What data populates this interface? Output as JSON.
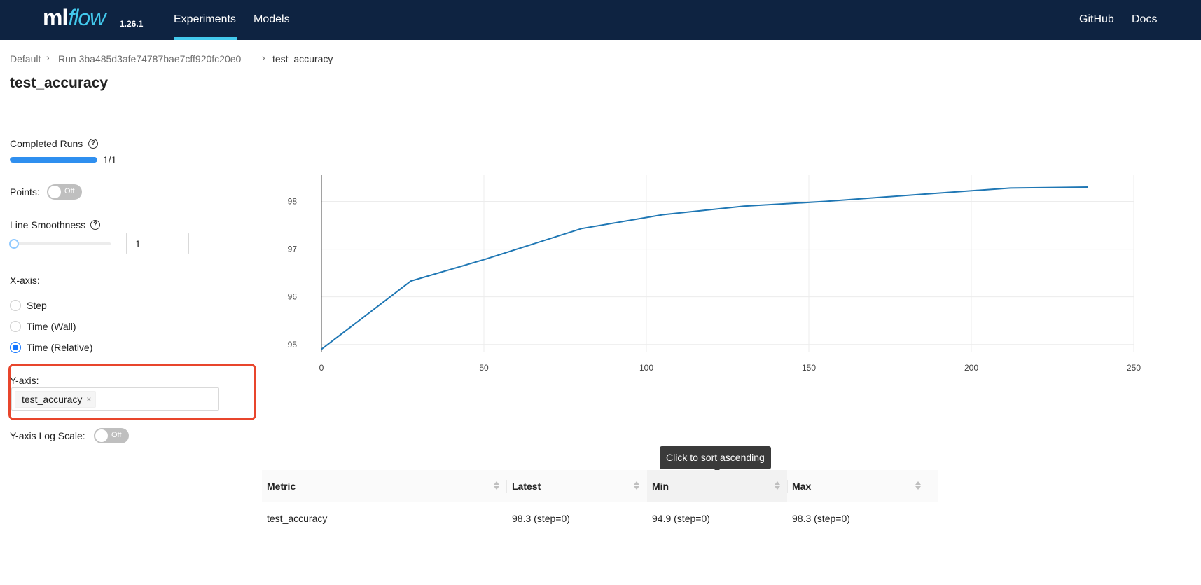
{
  "header": {
    "logo_ml": "ml",
    "logo_flow": "flow",
    "version": "1.26.1",
    "nav": {
      "experiments": "Experiments",
      "models": "Models",
      "github": "GitHub",
      "docs": "Docs"
    },
    "accent_color": "#43c9ed",
    "bg_color": "#0e2341"
  },
  "breadcrumb": [
    "Default",
    "Run 3ba485d3afe74787bae7cff920fc20e0",
    "test_accuracy"
  ],
  "page_title": "test_accuracy",
  "controls": {
    "completed_runs_label": "Completed Runs",
    "completed_runs_value": "1/1",
    "completed_runs_fraction": 1.0,
    "points_label": "Points:",
    "points_toggle": "Off",
    "line_smoothness_label": "Line Smoothness",
    "line_smoothness_value": "1",
    "x_axis_label": "X-axis:",
    "x_axis_options": [
      "Step",
      "Time (Wall)",
      "Time (Relative)"
    ],
    "x_axis_selected": "Time (Relative)",
    "y_axis_label": "Y-axis:",
    "y_axis_tag": "test_accuracy",
    "y_log_label": "Y-axis Log Scale:",
    "y_log_toggle": "Off"
  },
  "chart_data": {
    "type": "line",
    "x": [
      0,
      27.5,
      50,
      80,
      105,
      130,
      155,
      185,
      212,
      236
    ],
    "series": [
      {
        "values": [
          94.9,
          96.33,
          96.78,
          97.43,
          97.72,
          97.9,
          98.0,
          98.15,
          98.28,
          98.3
        ],
        "color": "#1f77b4"
      }
    ],
    "xlim": [
      0,
      250
    ],
    "ylim": [
      94.85,
      98.55
    ],
    "x_ticks": [
      0,
      50,
      100,
      150,
      200,
      250
    ],
    "y_ticks": [
      95,
      96,
      97,
      98
    ],
    "grid": true
  },
  "tooltip": "Click to sort ascending",
  "table": {
    "columns": [
      "Metric",
      "Latest",
      "Min",
      "Max"
    ],
    "rows": [
      [
        "test_accuracy",
        "98.3 (step=0)",
        "94.9 (step=0)",
        "98.3 (step=0)"
      ]
    ]
  }
}
